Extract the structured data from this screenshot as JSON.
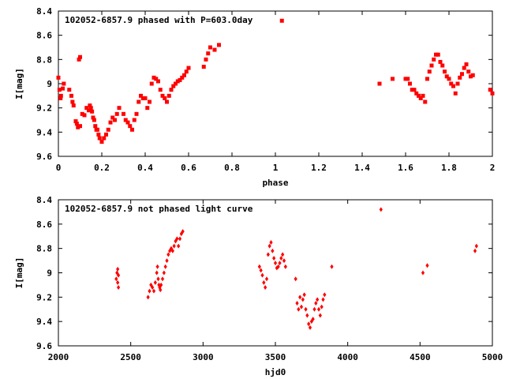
{
  "chart_data": [
    {
      "type": "scatter",
      "title": "102052-6857.9 phased with P=603.0day",
      "xlabel": "phase",
      "ylabel": "I[mag]",
      "xlim": [
        0,
        2
      ],
      "ylim": [
        8.4,
        9.6
      ],
      "y_inverted": true,
      "xticks": [
        "0",
        "0.2",
        "0.4",
        "0.6",
        "0.8",
        "1",
        "1.2",
        "1.4",
        "1.6",
        "1.8",
        "2"
      ],
      "yticks": [
        "8.4",
        "8.6",
        "8.8",
        "9",
        "9.2",
        "9.4",
        "9.6"
      ],
      "grid": false,
      "marker_color": "#ff0000",
      "marker_shape": "square",
      "series": [
        {
          "x": [
            0.0,
            0.005,
            0.01,
            0.012,
            0.02,
            0.025,
            0.05,
            0.06,
            0.065,
            0.07,
            0.08,
            0.085,
            0.09,
            0.095,
            0.1,
            0.1,
            0.11,
            0.12,
            0.13,
            0.14,
            0.145,
            0.15,
            0.155,
            0.16,
            0.165,
            0.17,
            0.175,
            0.18,
            0.185,
            0.19,
            0.2,
            0.21,
            0.22,
            0.23,
            0.24,
            0.25,
            0.26,
            0.27,
            0.28,
            0.3,
            0.31,
            0.32,
            0.33,
            0.34,
            0.35,
            0.36,
            0.37,
            0.38,
            0.39,
            0.4,
            0.41,
            0.42,
            0.43,
            0.44,
            0.45,
            0.46,
            0.47,
            0.48,
            0.49,
            0.5,
            0.51,
            0.52,
            0.53,
            0.54,
            0.55,
            0.56,
            0.57,
            0.58,
            0.59,
            0.6,
            0.67,
            0.68,
            0.69,
            0.7,
            0.72,
            0.74,
            1.03,
            1.48,
            1.54,
            1.6,
            1.61,
            1.62,
            1.63,
            1.64,
            1.65,
            1.66,
            1.67,
            1.68,
            1.69,
            1.7,
            1.71,
            1.72,
            1.73,
            1.74,
            1.75,
            1.76,
            1.77,
            1.78,
            1.79,
            1.8,
            1.81,
            1.82,
            1.83,
            1.84,
            1.85,
            1.86,
            1.87,
            1.88,
            1.89,
            1.9,
            1.91,
            1.99,
            2.0
          ],
          "y": [
            8.95,
            9.05,
            9.12,
            9.1,
            9.04,
            9.0,
            9.05,
            9.1,
            9.15,
            9.18,
            9.31,
            9.33,
            9.36,
            8.8,
            8.78,
            9.35,
            9.25,
            9.26,
            9.2,
            9.22,
            9.18,
            9.2,
            9.23,
            9.28,
            9.3,
            9.35,
            9.38,
            9.38,
            9.42,
            9.45,
            9.48,
            9.45,
            9.42,
            9.38,
            9.32,
            9.28,
            9.3,
            9.25,
            9.2,
            9.25,
            9.3,
            9.32,
            9.35,
            9.38,
            9.3,
            9.25,
            9.15,
            9.1,
            9.12,
            9.12,
            9.2,
            9.15,
            9.0,
            8.95,
            8.96,
            8.98,
            9.05,
            9.1,
            9.12,
            9.15,
            9.1,
            9.05,
            9.02,
            9.0,
            8.98,
            8.97,
            8.95,
            8.93,
            8.9,
            8.87,
            8.86,
            8.8,
            8.75,
            8.7,
            8.72,
            8.68,
            8.48,
            9.0,
            8.96,
            8.96,
            8.96,
            9.0,
            9.05,
            9.05,
            9.08,
            9.1,
            9.12,
            9.1,
            9.15,
            8.96,
            8.9,
            8.85,
            8.8,
            8.76,
            8.76,
            8.82,
            8.85,
            8.9,
            8.94,
            8.96,
            9.0,
            9.02,
            9.08,
            9.0,
            8.95,
            8.92,
            8.87,
            8.84,
            8.9,
            8.94,
            8.93,
            9.05,
            9.08
          ]
        }
      ]
    },
    {
      "type": "scatter",
      "title": "102052-6857.9 not phased light curve",
      "xlabel": "hjd0",
      "ylabel": "I[mag]",
      "xlim": [
        2000,
        5000
      ],
      "ylim": [
        8.4,
        9.6
      ],
      "y_inverted": true,
      "xticks": [
        "2000",
        "2500",
        "3000",
        "3500",
        "4000",
        "4500",
        "5000"
      ],
      "yticks": [
        "8.4",
        "8.6",
        "8.8",
        "9",
        "9.2",
        "9.4",
        "9.6"
      ],
      "grid": false,
      "marker_color": "#ff0000",
      "marker_shape": "diamond",
      "series": [
        {
          "x": [
            2400,
            2405,
            2410,
            2415,
            2410,
            2415,
            2620,
            2630,
            2640,
            2650,
            2660,
            2670,
            2680,
            2685,
            2690,
            2695,
            2700,
            2705,
            2710,
            2720,
            2730,
            2740,
            2750,
            2760,
            2770,
            2780,
            2790,
            2800,
            2810,
            2820,
            2830,
            2840,
            2850,
            2860,
            3390,
            3400,
            3410,
            3420,
            3430,
            3440,
            3450,
            3460,
            3470,
            3480,
            3490,
            3500,
            3510,
            3520,
            3530,
            3540,
            3550,
            3560,
            3570,
            3640,
            3650,
            3660,
            3670,
            3680,
            3690,
            3700,
            3710,
            3720,
            3730,
            3740,
            3750,
            3760,
            3770,
            3780,
            3790,
            3800,
            3810,
            3820,
            3830,
            3840,
            3890,
            4230,
            4520,
            4550,
            4880,
            4890
          ],
          "y": [
            9.05,
            9.0,
            9.08,
            9.12,
            8.97,
            9.02,
            9.2,
            9.15,
            9.1,
            9.12,
            9.15,
            9.08,
            9.0,
            8.95,
            9.05,
            9.1,
            9.12,
            9.14,
            9.1,
            9.05,
            9.0,
            8.95,
            8.9,
            8.85,
            8.82,
            8.8,
            8.82,
            8.78,
            8.74,
            8.72,
            8.78,
            8.72,
            8.68,
            8.66,
            8.95,
            8.98,
            9.02,
            9.08,
            9.12,
            9.05,
            8.85,
            8.78,
            8.75,
            8.82,
            8.88,
            8.92,
            8.96,
            8.95,
            8.92,
            8.88,
            8.85,
            8.9,
            8.95,
            9.05,
            9.25,
            9.3,
            9.2,
            9.28,
            9.22,
            9.18,
            9.3,
            9.35,
            9.42,
            9.45,
            9.4,
            9.38,
            9.3,
            9.25,
            9.22,
            9.3,
            9.35,
            9.28,
            9.22,
            9.18,
            8.95,
            8.48,
            9.0,
            8.94,
            8.82,
            8.78
          ]
        }
      ]
    }
  ]
}
